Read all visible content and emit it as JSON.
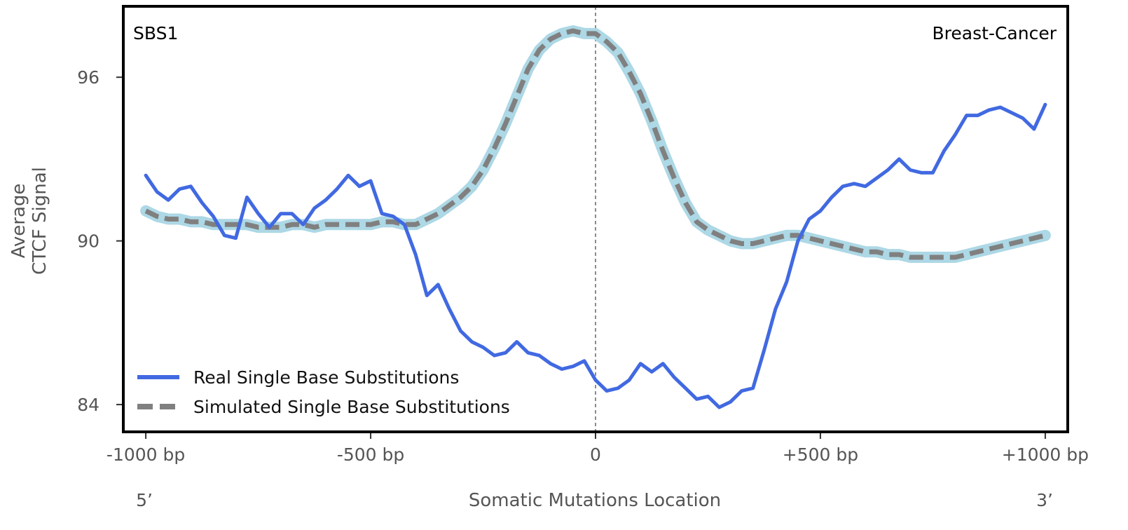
{
  "chart_data": {
    "type": "line",
    "top_left_label": "SBS1",
    "top_right_label": "Breast-Cancer",
    "xlabel": "Somatic Mutations Location",
    "ylabel_lines": [
      "Average",
      "CTCF Signal"
    ],
    "x_end_labels": {
      "left": "5’",
      "right": "3’"
    },
    "x_ticks": [
      {
        "value": -1000,
        "label": "-1000 bp"
      },
      {
        "value": -500,
        "label": "-500 bp"
      },
      {
        "value": 0,
        "label": "0"
      },
      {
        "value": 500,
        "label": "+500 bp"
      },
      {
        "value": 1000,
        "label": "+1000 bp"
      }
    ],
    "y_ticks": [
      {
        "value": 84,
        "label": "84"
      },
      {
        "value": 90,
        "label": "90"
      },
      {
        "value": 96,
        "label": "96"
      }
    ],
    "xlim": [
      -1050,
      1050
    ],
    "ylim": [
      83.0,
      98.6
    ],
    "center_line_x": 0,
    "legend_position": "lower-left",
    "colors": {
      "real": "#4169e1",
      "simulated": "#808080",
      "simulated_band": "#add8e6",
      "frame": "#000000"
    },
    "series": [
      {
        "name": "Real Single Base Substitutions",
        "style": "solid",
        "x": [
          -1000,
          -975,
          -950,
          -925,
          -900,
          -875,
          -850,
          -825,
          -800,
          -775,
          -750,
          -725,
          -700,
          -675,
          -650,
          -625,
          -600,
          -575,
          -550,
          -525,
          -500,
          -475,
          -450,
          -425,
          -400,
          -375,
          -350,
          -325,
          -300,
          -275,
          -250,
          -225,
          -200,
          -175,
          -150,
          -125,
          -100,
          -75,
          -50,
          -25,
          0,
          25,
          50,
          75,
          100,
          125,
          150,
          175,
          200,
          225,
          250,
          275,
          300,
          325,
          350,
          375,
          400,
          425,
          450,
          475,
          500,
          525,
          550,
          575,
          600,
          625,
          650,
          675,
          700,
          725,
          750,
          775,
          800,
          825,
          850,
          875,
          900,
          925,
          950,
          975,
          1000
        ],
        "y": [
          92.4,
          91.8,
          91.5,
          91.9,
          92.0,
          91.4,
          90.9,
          90.2,
          90.1,
          91.6,
          91.0,
          90.5,
          91.0,
          91.0,
          90.6,
          91.2,
          91.5,
          91.9,
          92.4,
          92.0,
          92.2,
          91.0,
          90.9,
          90.6,
          89.5,
          88.0,
          88.4,
          87.5,
          86.7,
          86.3,
          86.1,
          85.8,
          85.9,
          86.3,
          85.9,
          85.8,
          85.5,
          85.3,
          85.4,
          85.6,
          84.9,
          84.5,
          84.6,
          84.9,
          85.5,
          85.2,
          85.5,
          85.0,
          84.6,
          84.2,
          84.3,
          83.9,
          84.1,
          84.5,
          84.6,
          86.0,
          87.5,
          88.5,
          90.0,
          90.8,
          91.1,
          91.6,
          92.0,
          92.1,
          92.0,
          92.3,
          92.6,
          93.0,
          92.6,
          92.5,
          92.5,
          93.3,
          93.9,
          94.6,
          94.6,
          94.8,
          94.9,
          94.7,
          94.5,
          94.1,
          95.0
        ]
      },
      {
        "name": "Simulated Single Base Substitutions",
        "style": "dashed",
        "x": [
          -1000,
          -975,
          -950,
          -925,
          -900,
          -875,
          -850,
          -825,
          -800,
          -775,
          -750,
          -725,
          -700,
          -675,
          -650,
          -625,
          -600,
          -575,
          -550,
          -525,
          -500,
          -475,
          -450,
          -425,
          -400,
          -375,
          -350,
          -325,
          -300,
          -275,
          -250,
          -225,
          -200,
          -175,
          -150,
          -125,
          -100,
          -75,
          -50,
          -25,
          0,
          25,
          50,
          75,
          100,
          125,
          150,
          175,
          200,
          225,
          250,
          275,
          300,
          325,
          350,
          375,
          400,
          425,
          450,
          475,
          500,
          525,
          550,
          575,
          600,
          625,
          650,
          675,
          700,
          725,
          750,
          775,
          800,
          825,
          850,
          875,
          900,
          925,
          950,
          975,
          1000
        ],
        "y": [
          91.1,
          90.9,
          90.8,
          90.8,
          90.7,
          90.7,
          90.6,
          90.6,
          90.6,
          90.6,
          90.5,
          90.5,
          90.5,
          90.6,
          90.6,
          90.5,
          90.6,
          90.6,
          90.6,
          90.6,
          90.6,
          90.7,
          90.7,
          90.6,
          90.6,
          90.8,
          91.0,
          91.3,
          91.6,
          92.0,
          92.6,
          93.4,
          94.3,
          95.3,
          96.3,
          97.0,
          97.4,
          97.6,
          97.7,
          97.6,
          97.6,
          97.3,
          96.9,
          96.2,
          95.4,
          94.4,
          93.3,
          92.3,
          91.4,
          90.7,
          90.4,
          90.2,
          90.0,
          89.9,
          89.9,
          90.0,
          90.1,
          90.2,
          90.2,
          90.1,
          90.0,
          89.9,
          89.8,
          89.7,
          89.6,
          89.6,
          89.5,
          89.5,
          89.4,
          89.4,
          89.4,
          89.4,
          89.4,
          89.5,
          89.6,
          89.7,
          89.8,
          89.9,
          90.0,
          90.1,
          90.2
        ]
      }
    ]
  }
}
